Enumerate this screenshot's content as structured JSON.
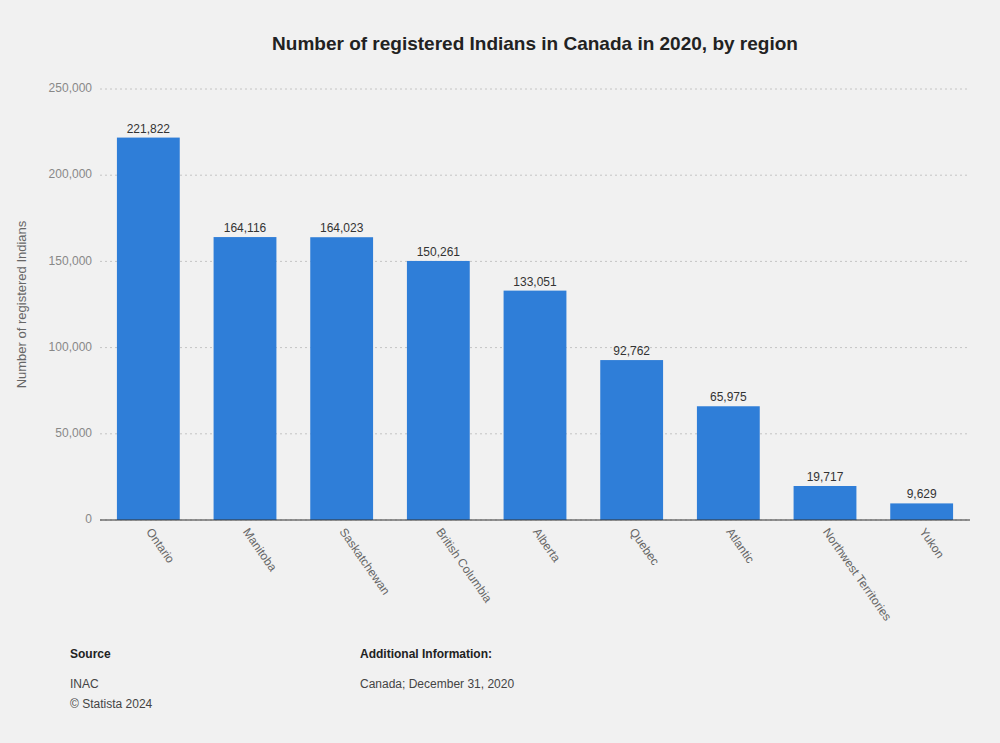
{
  "chart_data": {
    "type": "bar",
    "title": "Number of registered Indians in Canada in 2020, by region",
    "categories": [
      "Ontario",
      "Manitoba",
      "Saskatchewan",
      "British Columbia",
      "Alberta",
      "Quebec",
      "Atlantic",
      "Northwest Territories",
      "Yukon"
    ],
    "values": [
      221822,
      164116,
      164023,
      150261,
      133051,
      92762,
      65975,
      19717,
      9629
    ],
    "value_labels": [
      "221,822",
      "164,116",
      "164,023",
      "150,261",
      "133,051",
      "92,762",
      "65,975",
      "19,717",
      "9,629"
    ],
    "data_labels": true,
    "color": "#2f7ed8",
    "ylabel": "Number of registered Indians",
    "ylim": [
      0,
      250000
    ],
    "yticks": [
      0,
      {
        "value": 50000,
        "label": "50,000"
      },
      {
        "value": 100000,
        "label": "100,000"
      },
      {
        "value": 150000,
        "label": "150,000"
      },
      {
        "value": 200000,
        "label": "200,000"
      },
      {
        "value": 250000,
        "label": "250,000"
      }
    ],
    "grid": true,
    "annotations": [
      "Source",
      "INAC\n© Statista 2024",
      "Additional Information:",
      "Canada; December 31, 2020"
    ]
  }
}
